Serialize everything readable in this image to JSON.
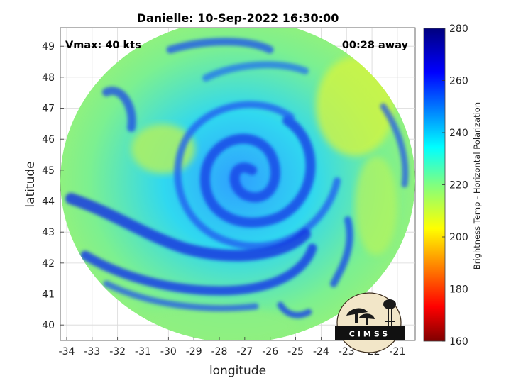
{
  "title": "Danielle: 10-Sep-2022 16:30:00",
  "vmax_text": "Vmax: 40 kts",
  "time_away_text": "00:28 away",
  "logo_text": "CIMSS",
  "map": {
    "xlabel": "longitude",
    "ylabel": "latitude",
    "xlim": [
      -34.25,
      -20.3
    ],
    "ylim": [
      39.5,
      49.6
    ],
    "xticks": [
      -34,
      -33,
      -32,
      -31,
      -30,
      -29,
      -28,
      -27,
      -26,
      -25,
      -24,
      -23,
      -22,
      -21
    ],
    "yticks": [
      40,
      41,
      42,
      43,
      44,
      45,
      46,
      47,
      48,
      49
    ],
    "grid": true,
    "swath_center": [
      -26.95,
      44.6
    ],
    "storm_center": [
      -26.8,
      44.7
    ]
  },
  "colorbar": {
    "label": "Brightness Temp - Horizontal Polarization",
    "min": 160,
    "max": 280,
    "ticks": [
      160,
      180,
      200,
      220,
      240,
      260,
      280
    ],
    "colormap": "jet"
  }
}
